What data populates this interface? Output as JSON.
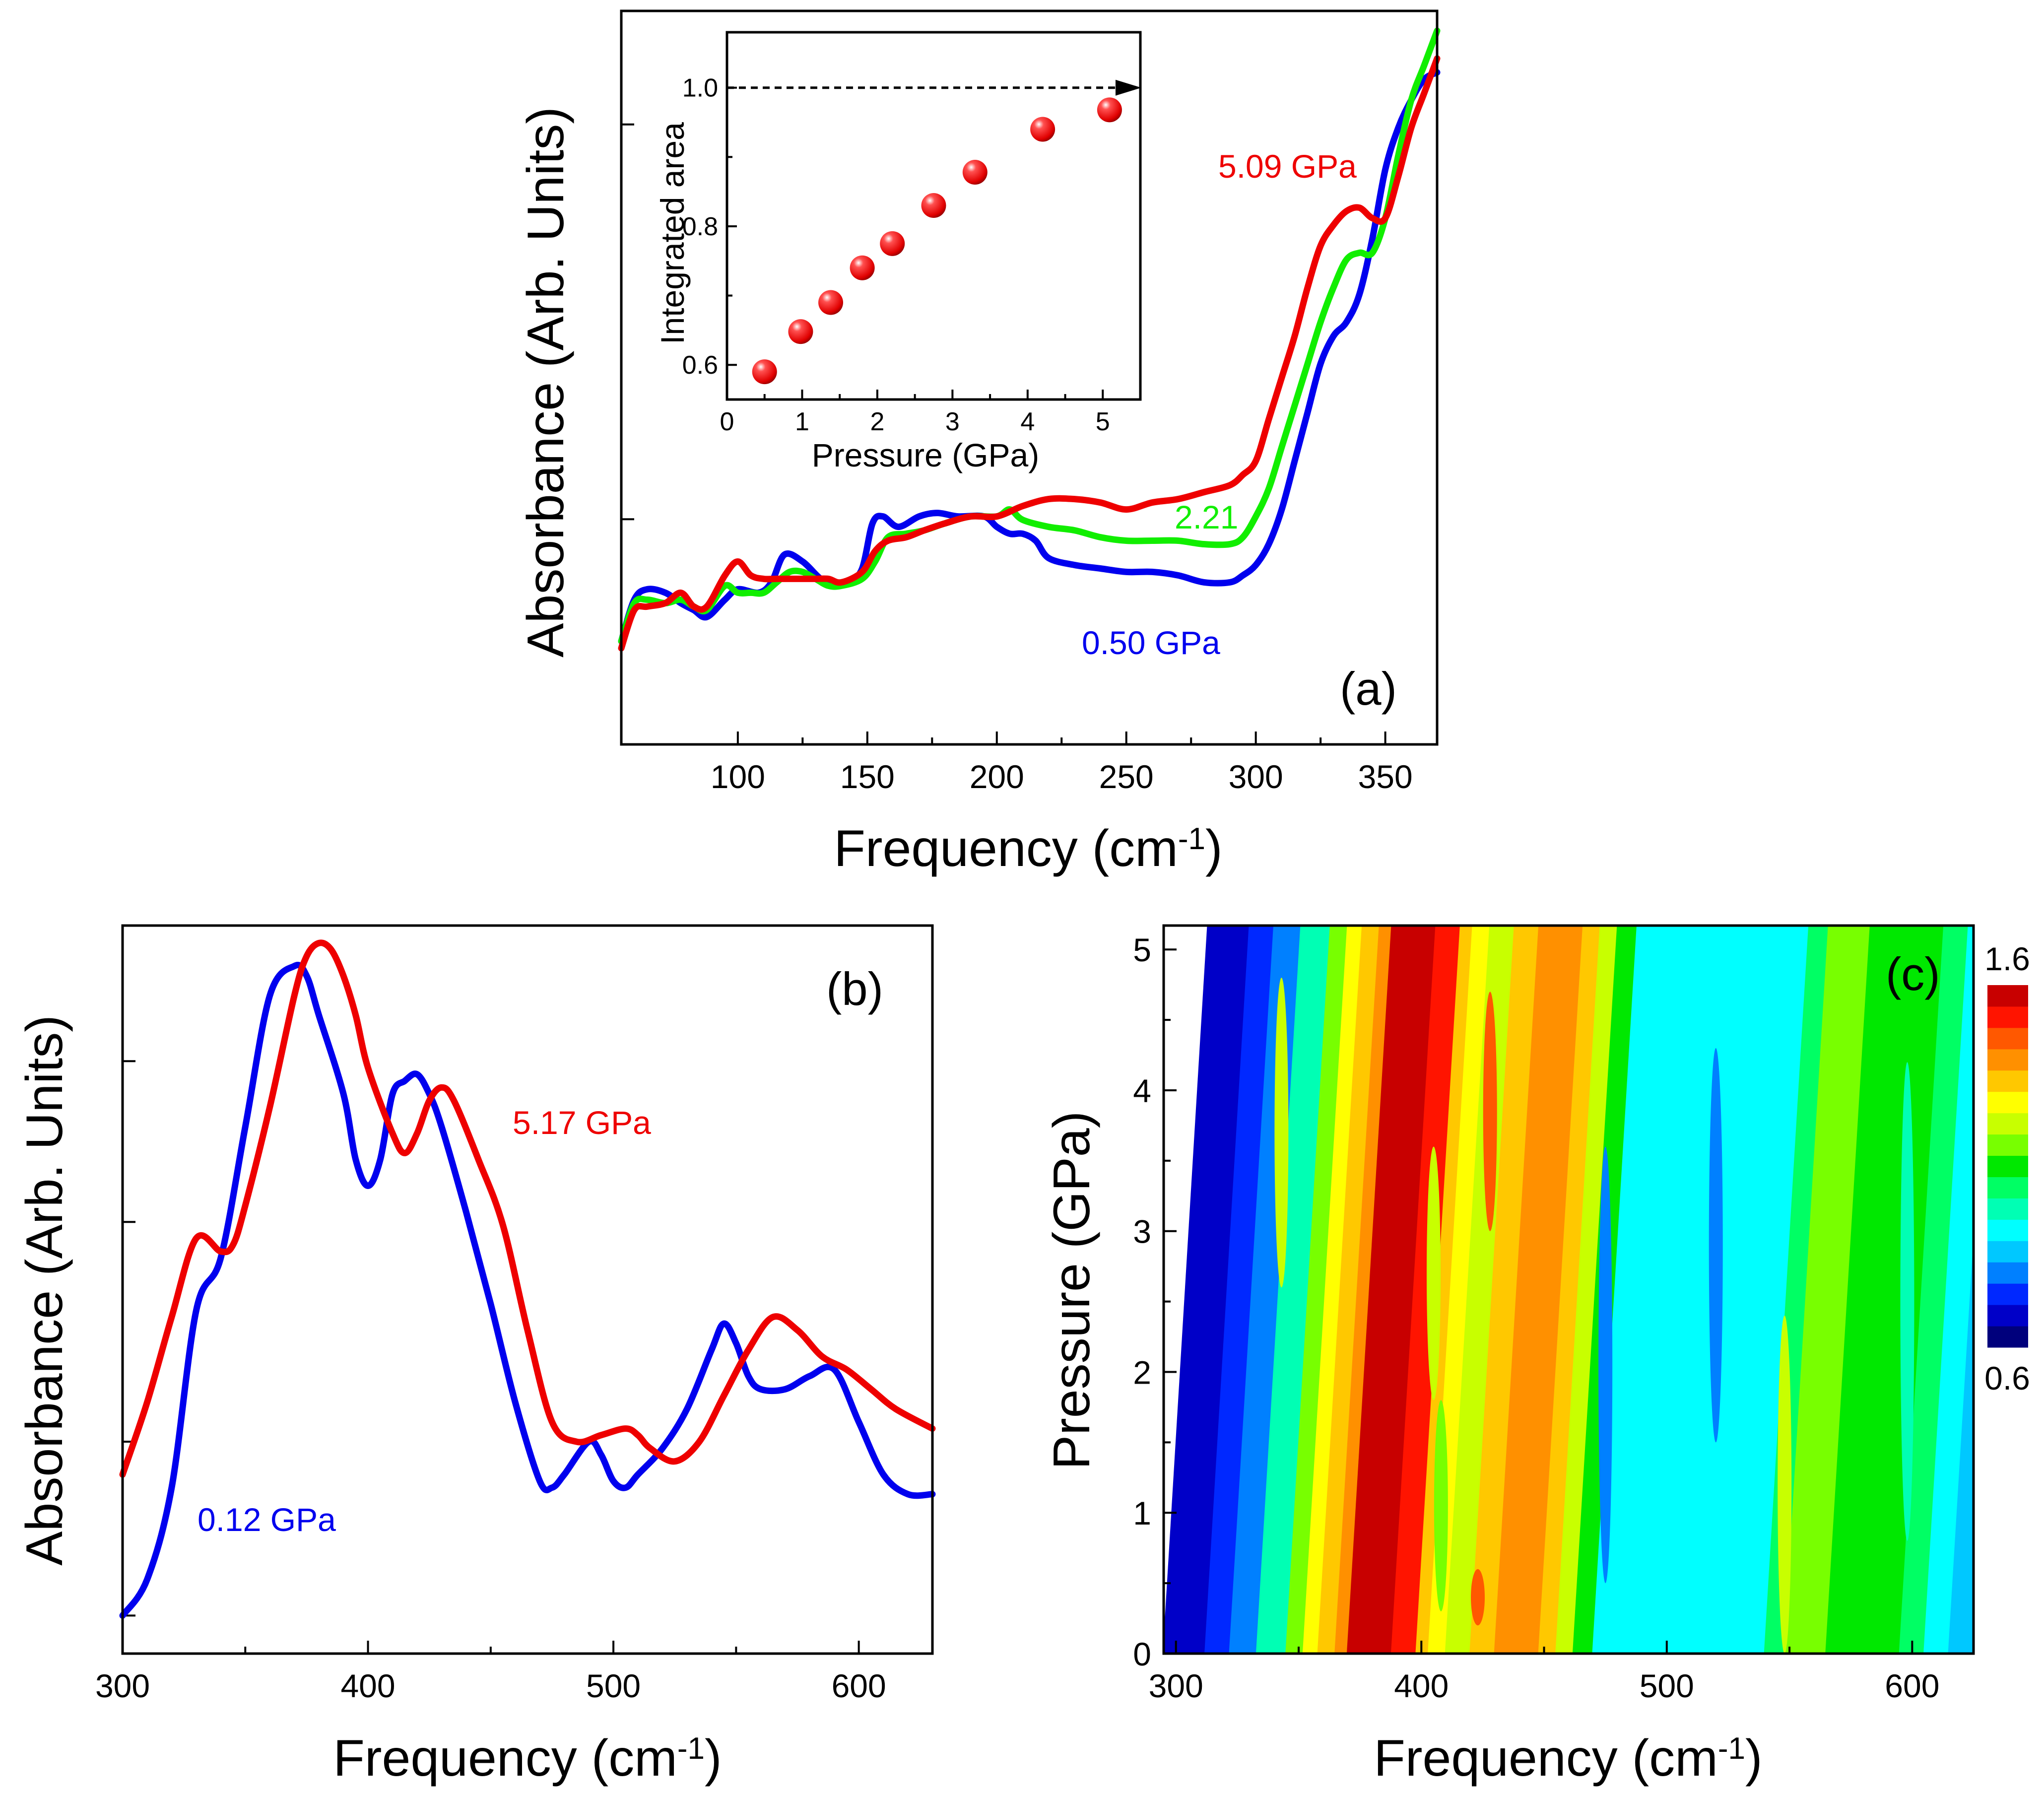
{
  "chart_data": [
    {
      "panel": "(a)",
      "type": "line",
      "xlabel": "Frequency (cm",
      "xlabel_sup": "-1",
      "xlabel_end": ")",
      "ylabel": "Absorbance (Arb. Units)",
      "xlim": [
        55,
        370
      ],
      "ylim": [
        0,
        1
      ],
      "xticks": [
        100,
        150,
        200,
        250,
        300,
        350
      ],
      "yticks_values": [
        0.296,
        0.865
      ],
      "series": [
        {
          "name": "0.50 GPa",
          "color": "#0000ee",
          "x": [
            55,
            60,
            65,
            72,
            78,
            83,
            88,
            95,
            100,
            108,
            113,
            118,
            125,
            132,
            138,
            143,
            148,
            152,
            156,
            162,
            170,
            177,
            185,
            195,
            200,
            205,
            210,
            215,
            220,
            230,
            240,
            250,
            260,
            270,
            280,
            290,
            295,
            300,
            305,
            310,
            315,
            320,
            325,
            330,
            335,
            340,
            345,
            350,
            355,
            360,
            365,
            370
          ],
          "y": [
            0.12,
            0.18,
            0.195,
            0.19,
            0.175,
            0.165,
            0.155,
            0.18,
            0.195,
            0.19,
            0.205,
            0.245,
            0.235,
            0.21,
            0.2,
            0.205,
            0.225,
            0.29,
            0.3,
            0.285,
            0.3,
            0.305,
            0.3,
            0.3,
            0.285,
            0.275,
            0.275,
            0.265,
            0.24,
            0.23,
            0.225,
            0.22,
            0.22,
            0.215,
            0.205,
            0.205,
            0.215,
            0.23,
            0.26,
            0.31,
            0.38,
            0.45,
            0.52,
            0.56,
            0.58,
            0.62,
            0.7,
            0.8,
            0.86,
            0.9,
            0.93,
            0.94
          ]
        },
        {
          "name": "2.21",
          "color": "#11ee00",
          "x": [
            55,
            60,
            65,
            72,
            78,
            83,
            88,
            95,
            100,
            105,
            110,
            115,
            120,
            125,
            130,
            135,
            140,
            148,
            153,
            158,
            165,
            172,
            180,
            190,
            200,
            205,
            210,
            220,
            230,
            240,
            250,
            260,
            270,
            280,
            290,
            295,
            300,
            305,
            310,
            315,
            320,
            325,
            330,
            335,
            340,
            345,
            350,
            355,
            360,
            365,
            370
          ],
          "y": [
            0.12,
            0.175,
            0.18,
            0.175,
            0.18,
            0.17,
            0.165,
            0.2,
            0.19,
            0.19,
            0.19,
            0.205,
            0.22,
            0.22,
            0.21,
            0.2,
            0.2,
            0.21,
            0.235,
            0.27,
            0.275,
            0.28,
            0.29,
            0.3,
            0.3,
            0.31,
            0.295,
            0.285,
            0.28,
            0.27,
            0.265,
            0.265,
            0.265,
            0.26,
            0.26,
            0.27,
            0.3,
            0.34,
            0.4,
            0.46,
            0.52,
            0.58,
            0.63,
            0.67,
            0.68,
            0.68,
            0.73,
            0.82,
            0.9,
            0.95,
            1.0
          ]
        },
        {
          "name": "5.09 GPa",
          "color": "#ee0000",
          "x": [
            55,
            60,
            65,
            72,
            78,
            83,
            88,
            95,
            100,
            105,
            110,
            115,
            120,
            125,
            130,
            135,
            140,
            148,
            153,
            158,
            165,
            172,
            180,
            190,
            200,
            210,
            220,
            230,
            240,
            250,
            260,
            270,
            280,
            290,
            295,
            300,
            305,
            310,
            315,
            320,
            325,
            330,
            335,
            340,
            345,
            350,
            355,
            360,
            365,
            370
          ],
          "y": [
            0.11,
            0.165,
            0.17,
            0.175,
            0.19,
            0.17,
            0.17,
            0.215,
            0.235,
            0.215,
            0.21,
            0.21,
            0.21,
            0.21,
            0.21,
            0.21,
            0.205,
            0.22,
            0.25,
            0.265,
            0.27,
            0.28,
            0.29,
            0.3,
            0.3,
            0.315,
            0.325,
            0.325,
            0.32,
            0.31,
            0.32,
            0.325,
            0.335,
            0.345,
            0.36,
            0.38,
            0.44,
            0.5,
            0.56,
            0.63,
            0.69,
            0.72,
            0.74,
            0.745,
            0.73,
            0.73,
            0.79,
            0.86,
            0.91,
            0.96
          ]
        }
      ],
      "annotations": [
        "5.09 GPa",
        "2.21",
        "0.50 GPa"
      ]
    },
    {
      "panel": "(a) inset",
      "type": "scatter",
      "xlabel": "Pressure (GPa)",
      "ylabel": "Integrated area",
      "xlim": [
        0,
        5.5
      ],
      "ylim": [
        0.55,
        1.08
      ],
      "xticks": [
        0,
        1,
        2,
        3,
        4,
        5
      ],
      "yticks": [
        0.6,
        0.8,
        1.0
      ],
      "ytick_labels": [
        "0.6",
        "0.8",
        "1.0"
      ],
      "x": [
        0.5,
        0.98,
        1.38,
        1.8,
        2.2,
        2.75,
        3.3,
        4.2,
        5.09
      ],
      "y": [
        0.59,
        0.648,
        0.69,
        0.74,
        0.775,
        0.83,
        0.878,
        0.94,
        0.968
      ],
      "reference_line_y": 1.0,
      "color": "#ee0000"
    },
    {
      "panel": "(b)",
      "type": "line",
      "xlabel": "Frequency (cm",
      "xlabel_sup": "-1",
      "xlabel_end": ")",
      "ylabel": "Absorbance (Arb. Units)",
      "xlim": [
        300,
        630
      ],
      "ylim": [
        0,
        1
      ],
      "xticks": [
        300,
        400,
        500,
        600
      ],
      "yticks_values": [
        0.005,
        0.27,
        0.605,
        0.85
      ],
      "series": [
        {
          "name": "0.12 GPa",
          "color": "#0000ee",
          "x": [
            300,
            310,
            320,
            330,
            340,
            350,
            360,
            370,
            375,
            380,
            390,
            395,
            400,
            405,
            410,
            415,
            420,
            425,
            430,
            440,
            450,
            460,
            470,
            475,
            480,
            490,
            495,
            500,
            505,
            510,
            520,
            530,
            540,
            545,
            550,
            555,
            560,
            570,
            580,
            590,
            600,
            610,
            620,
            630
          ],
          "y": [
            0.005,
            0.06,
            0.2,
            0.47,
            0.55,
            0.75,
            0.95,
            0.995,
            0.98,
            0.92,
            0.8,
            0.7,
            0.66,
            0.7,
            0.8,
            0.82,
            0.83,
            0.8,
            0.75,
            0.62,
            0.48,
            0.33,
            0.21,
            0.2,
            0.22,
            0.27,
            0.25,
            0.21,
            0.2,
            0.22,
            0.26,
            0.32,
            0.41,
            0.45,
            0.42,
            0.37,
            0.35,
            0.35,
            0.37,
            0.38,
            0.3,
            0.22,
            0.19,
            0.19
          ]
        },
        {
          "name": "5.17 GPa",
          "color": "#ee0000",
          "x": [
            300,
            310,
            320,
            330,
            340,
            345,
            350,
            360,
            370,
            375,
            380,
            385,
            390,
            395,
            400,
            410,
            415,
            420,
            425,
            430,
            435,
            445,
            455,
            465,
            475,
            485,
            495,
            505,
            510,
            515,
            525,
            535,
            545,
            555,
            565,
            575,
            585,
            595,
            605,
            615,
            630
          ],
          "y": [
            0.22,
            0.33,
            0.46,
            0.58,
            0.56,
            0.57,
            0.63,
            0.78,
            0.95,
            1.01,
            1.03,
            1.02,
            0.98,
            0.92,
            0.84,
            0.74,
            0.71,
            0.74,
            0.79,
            0.81,
            0.79,
            0.7,
            0.6,
            0.44,
            0.3,
            0.27,
            0.28,
            0.29,
            0.28,
            0.26,
            0.24,
            0.27,
            0.34,
            0.41,
            0.46,
            0.44,
            0.4,
            0.38,
            0.35,
            0.32,
            0.29
          ]
        }
      ],
      "annotations": [
        "5.17 GPa",
        "0.12 GPa"
      ]
    },
    {
      "panel": "(c)",
      "type": "heatmap",
      "xlabel": "Frequency (cm",
      "xlabel_sup": "-1",
      "xlabel_end": ")",
      "ylabel": "Pressure (GPa)",
      "xlim": [
        295,
        625
      ],
      "ylim": [
        0,
        5.17
      ],
      "xticks": [
        300,
        400,
        500,
        600
      ],
      "yticks": [
        0,
        1,
        2,
        3,
        4,
        5
      ],
      "colorbar_min_label": "0.6",
      "colorbar_max_label": "1.6",
      "colorbar_levels": [
        "#00007c",
        "#0000c8",
        "#0028ff",
        "#0080ff",
        "#00c8ff",
        "#00ffff",
        "#00ffb4",
        "#00ff64",
        "#00e800",
        "#78ff00",
        "#c8ff00",
        "#ffff00",
        "#ffc800",
        "#ff9000",
        "#ff5800",
        "#ff1400",
        "#c80000"
      ],
      "band_x": [
        295,
        303,
        312,
        322,
        333,
        345,
        352,
        358,
        365,
        370,
        378,
        388,
        398,
        403,
        410,
        420,
        430,
        440,
        448,
        455,
        462,
        470,
        490,
        530,
        540,
        548,
        555,
        565,
        580,
        595,
        605,
        615,
        625
      ],
      "band_levels": [
        1,
        1,
        2,
        3,
        6,
        9,
        11,
        12,
        13,
        16,
        16,
        15,
        12,
        11,
        10,
        12,
        13,
        13,
        12,
        10,
        8,
        5,
        5,
        5,
        7,
        9,
        9,
        8,
        8,
        7,
        5,
        4,
        4
      ],
      "pressure_y": [
        0,
        1,
        2,
        3,
        4,
        5.17
      ],
      "band_shift_freq_per_GPa": 3.5
    }
  ]
}
